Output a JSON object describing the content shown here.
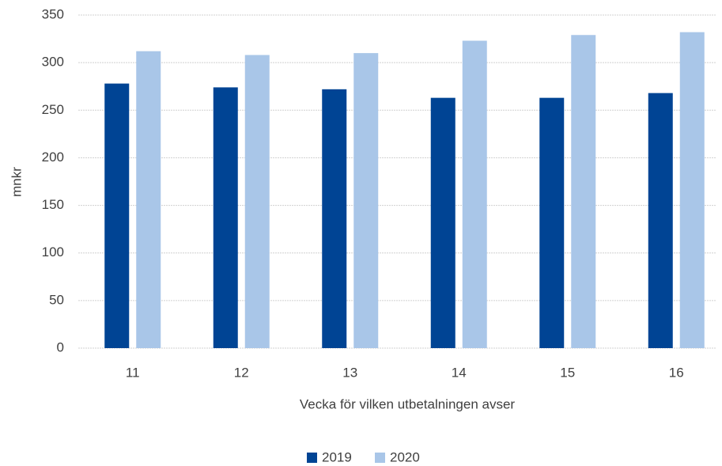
{
  "chart_data": {
    "type": "bar",
    "x_label": "Vecka för vilken utbetalningen avser",
    "y_label": "mnkr",
    "categories": [
      "11",
      "12",
      "13",
      "14",
      "15",
      "16"
    ],
    "series": [
      {
        "name": "2019",
        "color": "#004494",
        "values": [
          278,
          274,
          272,
          263,
          263,
          268
        ]
      },
      {
        "name": "2020",
        "color": "#a9c6e8",
        "values": [
          312,
          308,
          310,
          323,
          329,
          332
        ]
      }
    ],
    "ylim": [
      0,
      350
    ],
    "yticks": [
      0,
      50,
      100,
      150,
      200,
      250,
      300,
      350
    ],
    "grid": true,
    "legend": "bottom"
  }
}
